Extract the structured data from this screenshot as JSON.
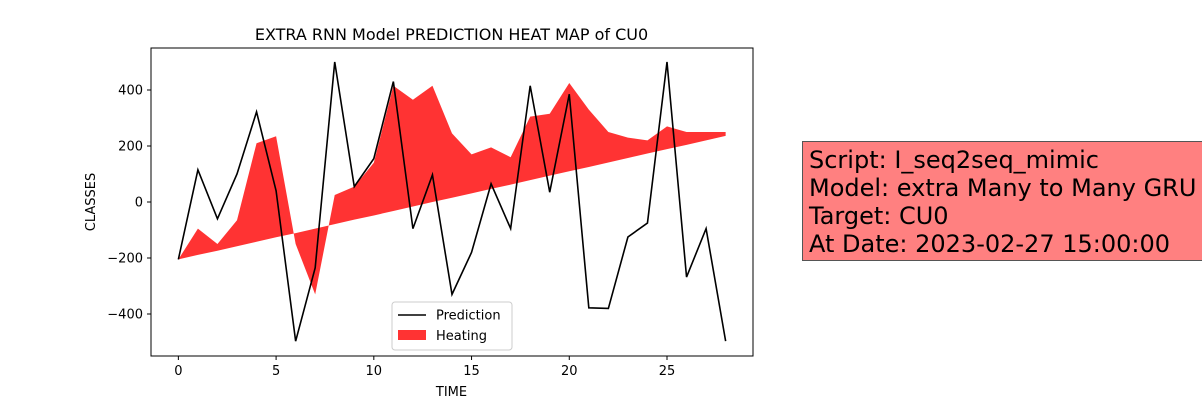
{
  "chart_data": {
    "type": "line",
    "title": "EXTRA RNN Model PREDICTION HEAT MAP of CU0",
    "xlabel": "TIME",
    "ylabel": "CLASSES",
    "xlim": [
      -1.4,
      29.4
    ],
    "ylim": [
      -550,
      550
    ],
    "x_ticks": [
      0,
      5,
      10,
      15,
      20,
      25
    ],
    "y_ticks": [
      -400,
      -200,
      0,
      200,
      400
    ],
    "x": [
      0,
      1,
      2,
      3,
      4,
      5,
      6,
      7,
      8,
      9,
      10,
      11,
      12,
      13,
      14,
      15,
      16,
      17,
      18,
      19,
      20,
      21,
      22,
      23,
      24,
      25,
      26,
      27,
      28
    ],
    "series": [
      {
        "name": "Prediction",
        "color": "#000000",
        "values": [
          -205,
          115,
          -60,
          100,
          322,
          40,
          -497,
          -235,
          500,
          55,
          155,
          430,
          -95,
          97,
          -330,
          -180,
          65,
          -95,
          415,
          35,
          385,
          -378,
          -380,
          -125,
          -75,
          500,
          -268,
          -95,
          -497
        ]
      },
      {
        "name": "Heating",
        "type": "area",
        "color": "#ff0000",
        "values": [
          -205,
          -95,
          -150,
          -65,
          210,
          235,
          -150,
          -330,
          25,
          55,
          140,
          415,
          365,
          415,
          245,
          170,
          195,
          160,
          305,
          315,
          425,
          330,
          250,
          230,
          220,
          270,
          250,
          250,
          250
        ],
        "baseline": [
          -205,
          -189,
          -174,
          -158,
          -142,
          -126,
          -111,
          -95,
          -79,
          -63,
          -48,
          -32,
          -16,
          0,
          15,
          31,
          47,
          62,
          78,
          94,
          110,
          125,
          141,
          157,
          173,
          189,
          204,
          220,
          236
        ]
      }
    ],
    "legend": {
      "placement": "lower-center",
      "entries": [
        "Prediction",
        "Heating"
      ]
    },
    "grid": false
  },
  "info": {
    "lines": [
      "Script: I_seq2seq_mimic",
      "Model: extra Many to Many GRU",
      "Target: CU0",
      "At Date: 2023-02-27 15:00:00"
    ],
    "background": "#ff8080"
  }
}
